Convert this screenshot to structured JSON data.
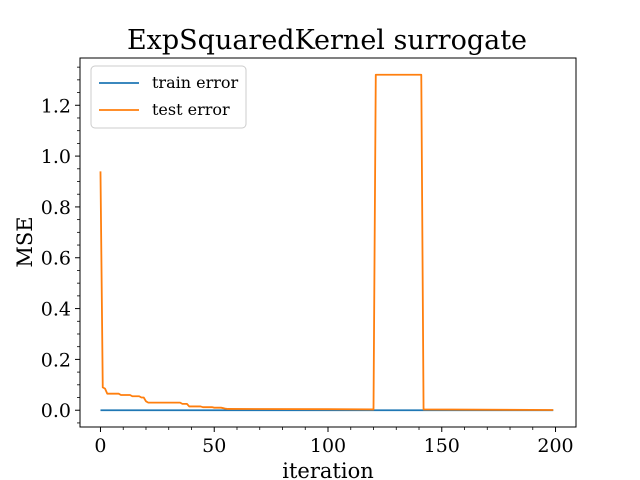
{
  "chart_data": {
    "type": "line",
    "title": "ExpSquaredKernel surrogate",
    "xlabel": "iteration",
    "ylabel": "MSE",
    "xlim": [
      -9,
      209
    ],
    "ylim": [
      -0.066,
      1.386
    ],
    "xticks": [
      0,
      50,
      100,
      150,
      200
    ],
    "yticks": [
      0.0,
      0.2,
      0.4,
      0.6,
      0.8,
      1.0,
      1.2
    ],
    "xtick_labels": [
      "0",
      "50",
      "100",
      "150",
      "200"
    ],
    "ytick_labels": [
      "0.0",
      "0.2",
      "0.4",
      "0.6",
      "0.8",
      "1.0",
      "1.2"
    ],
    "grid": false,
    "legend_position": "top-left",
    "series": [
      {
        "name": "train error",
        "color": "#1f77b4",
        "x": [
          0,
          199
        ],
        "y": [
          0.0,
          0.0
        ]
      },
      {
        "name": "test error",
        "color": "#ff7f0e",
        "x": [
          0,
          1,
          2,
          3,
          8,
          9,
          13,
          14,
          17,
          18,
          19,
          20,
          21,
          35,
          36,
          38,
          39,
          44,
          45,
          49,
          50,
          53,
          54,
          55,
          56,
          100,
          120,
          121,
          130,
          140,
          141,
          142,
          199
        ],
        "y": [
          0.94,
          0.09,
          0.085,
          0.065,
          0.065,
          0.06,
          0.06,
          0.055,
          0.055,
          0.05,
          0.05,
          0.035,
          0.03,
          0.03,
          0.025,
          0.025,
          0.015,
          0.015,
          0.012,
          0.012,
          0.01,
          0.01,
          0.008,
          0.006,
          0.005,
          0.004,
          0.003,
          1.32,
          1.32,
          1.32,
          1.32,
          0.003,
          0.001
        ]
      }
    ]
  }
}
